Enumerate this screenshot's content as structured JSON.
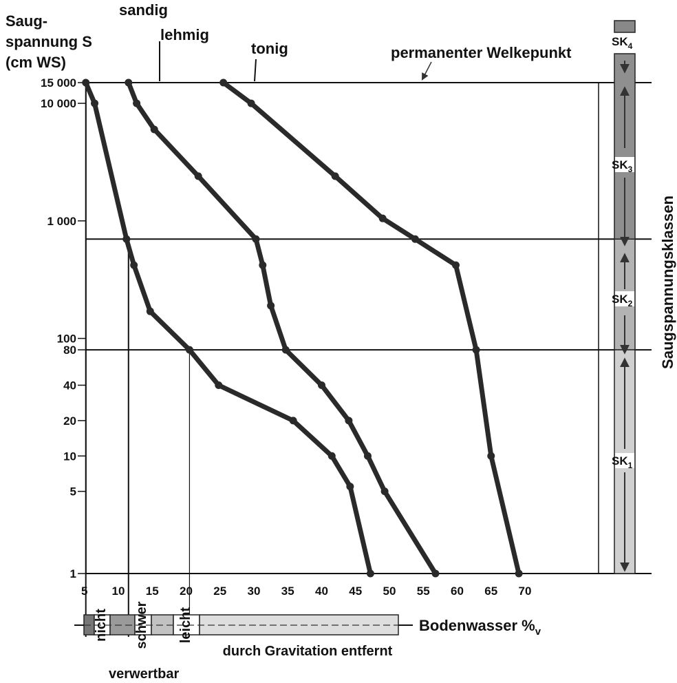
{
  "chart_data": {
    "type": "line",
    "ylabel_lines": [
      "Saug-",
      "spannung S",
      "(cm WS)"
    ],
    "xlabel": "Bodenwasser %",
    "xlabel_sub": "v",
    "right_label": "Saugspannungsklassen",
    "yscale": "log",
    "ylim": [
      1,
      15000
    ],
    "xlim": [
      0,
      75
    ],
    "y_ticks": [
      {
        "value": 1,
        "label": "1"
      },
      {
        "value": 5,
        "label": "5"
      },
      {
        "value": 10,
        "label": "10"
      },
      {
        "value": 20,
        "label": "20"
      },
      {
        "value": 40,
        "label": "40"
      },
      {
        "value": 80,
        "label": "80"
      },
      {
        "value": 100,
        "label": "100"
      },
      {
        "value": 1000,
        "label": "1 000"
      },
      {
        "value": 10000,
        "label": "10 000"
      },
      {
        "value": 15000,
        "label": "15 000"
      }
    ],
    "x_ticks": [
      {
        "value": 5,
        "label": "5"
      },
      {
        "value": 10,
        "label": "10"
      },
      {
        "value": 15,
        "label": "15"
      },
      {
        "value": 20,
        "label": "20"
      },
      {
        "value": 25,
        "label": "25"
      },
      {
        "value": 30,
        "label": "30"
      },
      {
        "value": 35,
        "label": "35"
      },
      {
        "value": 40,
        "label": "40"
      },
      {
        "value": 45,
        "label": "45"
      },
      {
        "value": 50,
        "label": "50"
      },
      {
        "value": 55,
        "label": "55"
      },
      {
        "value": 60,
        "label": "60"
      },
      {
        "value": 65,
        "label": "65"
      },
      {
        "value": 70,
        "label": "70"
      }
    ],
    "series": [
      {
        "name": "sandig",
        "points": [
          [
            5.2,
            15000
          ],
          [
            6.5,
            10000
          ],
          [
            11.2,
            700
          ],
          [
            12.3,
            420
          ],
          [
            14.7,
            170
          ],
          [
            20.5,
            80
          ],
          [
            24.8,
            40
          ],
          [
            35.8,
            20
          ],
          [
            41.5,
            10
          ],
          [
            44.2,
            5.5
          ],
          [
            47.2,
            1
          ]
        ]
      },
      {
        "name": "lehmig",
        "points": [
          [
            11.5,
            15000
          ],
          [
            12.7,
            10000
          ],
          [
            15.3,
            6000
          ],
          [
            21.8,
            2400
          ],
          [
            30.3,
            700
          ],
          [
            31.3,
            420
          ],
          [
            32.5,
            190
          ],
          [
            34.7,
            80
          ],
          [
            40,
            40
          ],
          [
            44,
            20
          ],
          [
            46.8,
            10
          ],
          [
            49.3,
            5
          ],
          [
            56.8,
            1
          ]
        ]
      },
      {
        "name": "tonig",
        "points": [
          [
            25.5,
            15000
          ],
          [
            29.6,
            10000
          ],
          [
            42,
            2400
          ],
          [
            49,
            1050
          ],
          [
            53.8,
            700
          ],
          [
            59.8,
            420
          ],
          [
            62.8,
            80
          ],
          [
            65,
            10
          ],
          [
            69.1,
            1
          ]
        ]
      }
    ],
    "reference_lines": [
      {
        "y": 15000,
        "label": "permanenter Welkepunkt"
      },
      {
        "y": 700
      },
      {
        "y": 80
      }
    ],
    "classes": [
      {
        "name": "SK",
        "sub": "4"
      },
      {
        "name": "SK",
        "sub": "3"
      },
      {
        "name": "SK",
        "sub": "2"
      },
      {
        "name": "SK",
        "sub": "1"
      }
    ],
    "availability": [
      {
        "label": "nicht"
      },
      {
        "label": "schwer"
      },
      {
        "label": "leicht"
      },
      {
        "label": "durch Gravitation entfernt"
      }
    ],
    "availability_caption": "verwertbar"
  }
}
